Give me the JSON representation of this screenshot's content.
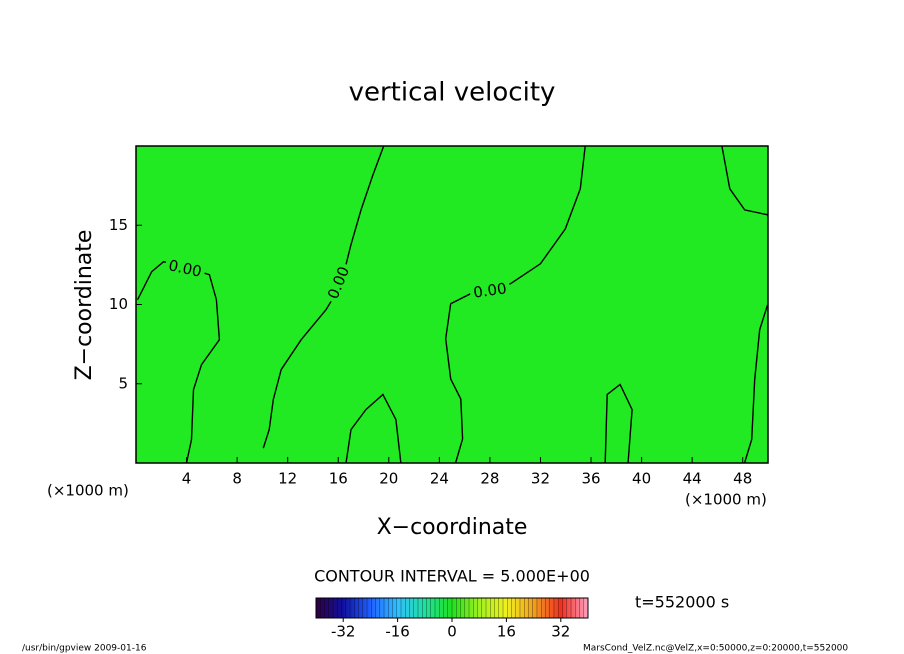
{
  "chart_data": {
    "type": "contour",
    "title": "vertical velocity",
    "xlabel": "X−coordinate",
    "ylabel": "Z−coordinate",
    "x_unit_labels": [
      "(×1000 m)",
      "(×1000 m)"
    ],
    "xlim": [
      0,
      50
    ],
    "ylim": [
      0,
      20
    ],
    "xticks": [
      4,
      8,
      12,
      16,
      20,
      24,
      28,
      32,
      36,
      40,
      44,
      48
    ],
    "yticks": [
      5,
      10,
      15
    ],
    "field_color": "#22ea22",
    "contour_color": "#000000",
    "contours": [
      {
        "level": 0,
        "label": "0.00",
        "x": [
          0.13,
          1.24,
          2.18,
          4.0,
          5.81,
          6.36,
          6.6,
          5.18,
          4.55,
          4.39,
          4.0
        ],
        "y": [
          10.3,
          12.07,
          12.7,
          12.32,
          11.88,
          10.3,
          7.78,
          6.2,
          4.63,
          1.48,
          0.03
        ]
      },
      {
        "level": 0,
        "label": "0.00",
        "x": [
          19.6,
          18.74,
          17.8,
          17.0,
          16.22,
          15.04,
          13.07,
          11.49,
          10.86,
          10.54,
          10.07
        ],
        "y": [
          20,
          18.17,
          15.96,
          13.76,
          11.25,
          9.68,
          7.78,
          5.89,
          4.0,
          2.11,
          0.94
        ]
      },
      {
        "level": 0,
        "label": "0.00",
        "x": [
          35.54,
          35.15,
          33.96,
          31.99,
          29.63,
          26.47,
          24.9,
          24.5,
          24.9,
          25.7,
          25.84,
          25.29
        ],
        "y": [
          20,
          17.3,
          14.77,
          12.57,
          11.31,
          10.68,
          10.05,
          7.84,
          5.3,
          4.04,
          1.52,
          0.03
        ]
      },
      {
        "level": 0,
        "x": [
          46.35,
          46.98,
          48.16,
          49.97
        ],
        "y": [
          20,
          17.3,
          15.97,
          15.66
        ]
      },
      {
        "level": 0,
        "x": [
          49.97,
          49.34,
          48.95,
          48.71,
          48.16
        ],
        "y": [
          9.99,
          8.41,
          5.26,
          1.48,
          0.03
        ]
      },
      {
        "level": 0,
        "x": [
          16.62,
          17.01,
          18.19,
          19.53,
          20.56,
          20.95
        ],
        "y": [
          0.03,
          2.11,
          3.37,
          4.32,
          2.74,
          0.03
        ]
      },
      {
        "level": 0,
        "x": [
          37.12,
          37.28,
          38.3,
          39.25,
          38.93
        ],
        "y": [
          0.03,
          4.32,
          4.95,
          3.37,
          0.03
        ]
      }
    ],
    "contour_interval_text": "CONTOUR INTERVAL = 5.000E+00",
    "time_text": "t=552000 s",
    "colorbar": {
      "lim": [
        -40,
        40
      ],
      "ticks": [
        -32,
        -16,
        0,
        16,
        32
      ],
      "colors": [
        "#300040",
        "#1010a0",
        "#2060ff",
        "#30c0ff",
        "#20e0a0",
        "#20e020",
        "#a0f020",
        "#f0f020",
        "#f0a020",
        "#f03020",
        "#ffa0c0"
      ]
    },
    "footer_left": "/usr/bin/gpview  2009-01-16",
    "footer_right": "MarsCond_VelZ.nc@VelZ,x=0:50000,z=0:20000,t=552000"
  }
}
